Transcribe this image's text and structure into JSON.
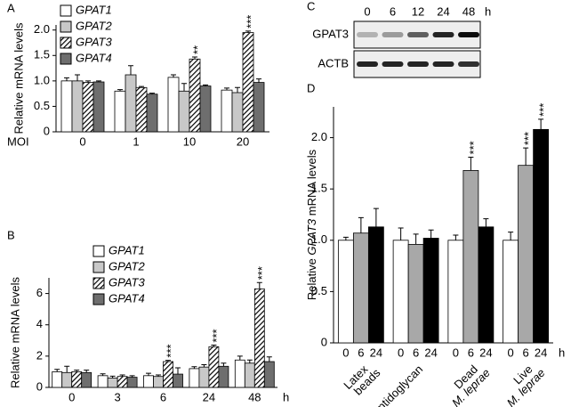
{
  "chart_data": [
    {
      "type": "bar",
      "label": "A",
      "ylabel": "Relative mRNA levels",
      "x_label": "MOI",
      "categories": [
        "0",
        "1",
        "10",
        "20"
      ],
      "series": [
        {
          "name": "GPAT1",
          "color": "#ffffff",
          "values": [
            1.0,
            0.8,
            1.07,
            0.82
          ],
          "errors": [
            0.06,
            0.03,
            0.05,
            0.04
          ]
        },
        {
          "name": "GPAT2",
          "color": "#c8c8c8",
          "values": [
            1.0,
            1.12,
            0.8,
            0.77
          ],
          "errors": [
            0.12,
            0.18,
            0.15,
            0.1
          ]
        },
        {
          "name": "GPAT3",
          "color": "#ffffff",
          "pattern": "hatch",
          "values": [
            0.97,
            0.87,
            1.43,
            1.95
          ],
          "errors": [
            0.03,
            0.02,
            0.04,
            0.03
          ],
          "significance": [
            null,
            null,
            "**",
            "***"
          ]
        },
        {
          "name": "GPAT4",
          "color": "#6e6e6e",
          "values": [
            0.98,
            0.74,
            0.9,
            0.97
          ],
          "errors": [
            0.02,
            0.02,
            0.02,
            0.07
          ]
        }
      ],
      "ylim": [
        0,
        2.1
      ],
      "yticks": [
        0,
        0.5,
        {
          "value": 1,
          "label": "1.0"
        },
        1.5,
        {
          "value": 2,
          "label": "2.0"
        }
      ],
      "legend": "top-left"
    },
    {
      "type": "bar",
      "label": "B",
      "ylabel": "Relative mRNA levels",
      "x_label": "h",
      "categories": [
        "0",
        "3",
        "6",
        "24",
        "48"
      ],
      "series": [
        {
          "name": "GPAT1",
          "color": "#ffffff",
          "values": [
            1.0,
            0.75,
            0.75,
            1.2,
            1.75
          ],
          "errors": [
            0.15,
            0.12,
            0.15,
            0.12,
            0.25
          ]
        },
        {
          "name": "GPAT2",
          "color": "#c8c8c8",
          "values": [
            0.95,
            0.6,
            0.7,
            1.3,
            1.55
          ],
          "errors": [
            0.4,
            0.12,
            0.1,
            0.15,
            0.2
          ]
        },
        {
          "name": "GPAT3",
          "color": "#ffffff",
          "pattern": "hatch",
          "values": [
            1.0,
            0.7,
            1.65,
            2.6,
            6.3
          ],
          "errors": [
            0.1,
            0.1,
            0.08,
            0.1,
            0.4
          ],
          "significance": [
            null,
            null,
            "***",
            "***",
            "***"
          ]
        },
        {
          "name": "GPAT4",
          "color": "#6e6e6e",
          "values": [
            0.95,
            0.65,
            0.85,
            1.35,
            1.65
          ],
          "errors": [
            0.15,
            0.1,
            0.4,
            0.2,
            0.3
          ]
        }
      ],
      "ylim": [
        0,
        7
      ],
      "yticks": [
        0,
        2,
        4,
        6
      ],
      "legend": "top-left"
    },
    {
      "type": "bar",
      "label": "D",
      "ylabel": [
        "Relative ",
        "GPAT3",
        " mRNA  levels"
      ],
      "x_label": "h",
      "categories": [
        [
          "Latex",
          "beads"
        ],
        [
          "Peptidoglycan"
        ],
        [
          "Dead",
          "M. leprae"
        ],
        [
          "Live",
          "M. leprae"
        ]
      ],
      "series": [
        {
          "name": "0",
          "color": "#ffffff",
          "values": [
            1.0,
            1.0,
            1.0,
            1.0
          ],
          "errors": [
            0.03,
            0.12,
            0.05,
            0.08
          ]
        },
        {
          "name": "6",
          "color": "#a8a8a8",
          "values": [
            1.07,
            0.96,
            1.68,
            1.73
          ],
          "errors": [
            0.15,
            0.1,
            0.13,
            0.17
          ],
          "significance": [
            null,
            null,
            "***",
            "***"
          ]
        },
        {
          "name": "24",
          "color": "#000000",
          "values": [
            1.13,
            1.02,
            1.13,
            2.08
          ],
          "errors": [
            0.18,
            0.08,
            0.08,
            0.1
          ],
          "significance": [
            null,
            null,
            null,
            "***"
          ]
        }
      ],
      "ylim": [
        0,
        2.3
      ],
      "yticks": [
        0,
        0.5,
        {
          "value": 1,
          "label": "1.0"
        },
        1.5,
        {
          "value": 2,
          "label": "2.0"
        }
      ]
    }
  ],
  "blot": {
    "label": "C",
    "lanes": [
      "0",
      "6",
      "12",
      "24",
      "48"
    ],
    "unit": "h",
    "rows": [
      "GPAT3",
      "ACTB"
    ]
  }
}
